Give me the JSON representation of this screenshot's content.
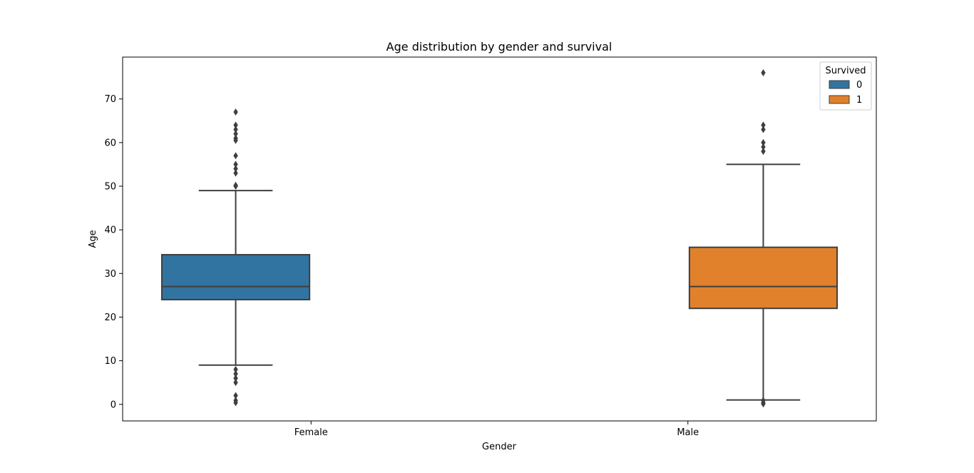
{
  "chart_data": {
    "type": "box",
    "title": "Age distribution by gender and survival",
    "xlabel": "Gender",
    "ylabel": "Age",
    "ylim": [
      -3.8,
      79.6
    ],
    "yticks": [
      0,
      10,
      20,
      30,
      40,
      50,
      60,
      70
    ],
    "categories": [
      "Female",
      "Male"
    ],
    "grid": false,
    "legend": {
      "title": "Survived",
      "placement": "top-right",
      "entries": [
        {
          "label": "0",
          "color": "#3274a1"
        },
        {
          "label": "1",
          "color": "#e1812c"
        }
      ]
    },
    "series": [
      {
        "name": "0",
        "color": "#3274a1",
        "category": "Female",
        "whisker_low": 9,
        "q1": 24,
        "median": 27,
        "q3": 34.3,
        "whisker_high": 49,
        "outliers": [
          0.4,
          0.9,
          2,
          5,
          6,
          7,
          8,
          50,
          50.2,
          53,
          54,
          55,
          57,
          60.5,
          61,
          62,
          63,
          64,
          67
        ]
      },
      {
        "name": "1",
        "color": "#e1812c",
        "category": "Male",
        "whisker_low": 1,
        "q1": 22,
        "median": 27,
        "q3": 36,
        "whisker_high": 55,
        "outliers": [
          0.1,
          0.4,
          0.9,
          58,
          59,
          60,
          63,
          64,
          76
        ]
      }
    ]
  },
  "colors": {
    "box_edge": "#3f3f3f",
    "axes": "#000000",
    "background": "#ffffff"
  }
}
